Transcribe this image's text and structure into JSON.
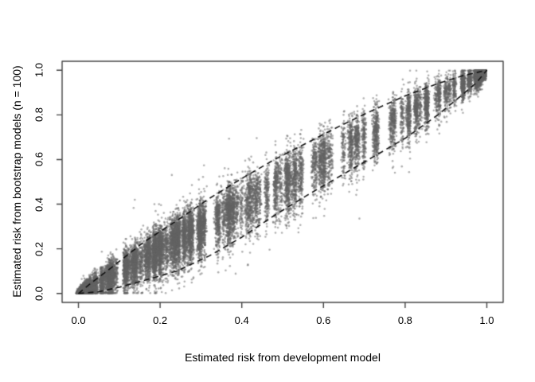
{
  "chart_data": {
    "type": "scatter",
    "title": "",
    "xlabel": "Estimated risk from development model",
    "ylabel": "Estimated risk from bootstrap models (n = 100)",
    "xlim": [
      -0.04,
      1.04
    ],
    "ylim": [
      -0.04,
      1.04
    ],
    "grid": false,
    "legend": null,
    "x_ticks": [
      "0.0",
      "0.2",
      "0.4",
      "0.6",
      "0.8",
      "1.0"
    ],
    "y_ticks": [
      "0.0",
      "0.2",
      "0.4",
      "0.6",
      "0.8",
      "1.0"
    ],
    "x_tick_values": [
      0,
      0.2,
      0.4,
      0.6,
      0.8,
      1.0
    ],
    "y_tick_values": [
      0,
      0.2,
      0.4,
      0.6,
      0.8,
      1.0
    ],
    "frame_color": "#444444",
    "envelope_upper": [
      [
        0,
        0
      ],
      [
        0.03,
        0.045
      ],
      [
        0.08,
        0.115
      ],
      [
        0.16,
        0.23
      ],
      [
        0.24,
        0.325
      ],
      [
        0.32,
        0.425
      ],
      [
        0.4,
        0.515
      ],
      [
        0.48,
        0.6
      ],
      [
        0.56,
        0.675
      ],
      [
        0.64,
        0.75
      ],
      [
        0.72,
        0.82
      ],
      [
        0.8,
        0.885
      ],
      [
        0.88,
        0.94
      ],
      [
        0.94,
        0.975
      ],
      [
        1,
        1
      ]
    ],
    "envelope_lower": [
      [
        0,
        0
      ],
      [
        0.05,
        0.008
      ],
      [
        0.1,
        0.028
      ],
      [
        0.16,
        0.058
      ],
      [
        0.24,
        0.1
      ],
      [
        0.32,
        0.168
      ],
      [
        0.4,
        0.252
      ],
      [
        0.48,
        0.35
      ],
      [
        0.56,
        0.44
      ],
      [
        0.64,
        0.525
      ],
      [
        0.72,
        0.61
      ],
      [
        0.8,
        0.695
      ],
      [
        0.88,
        0.8
      ],
      [
        0.94,
        0.89
      ],
      [
        0.975,
        0.945
      ],
      [
        1,
        1
      ]
    ],
    "line_style": {
      "color": "#111111",
      "width": 1.6,
      "dash": [
        7,
        5
      ]
    },
    "cloud": {
      "seed": 1337,
      "n_stripes": 235,
      "points_min": 60,
      "points_range": 80,
      "low_frac": 0.4,
      "low_scale": 0.38,
      "low_pow": 1.7,
      "mid_frac": 0.5,
      "mid_base": 0.1,
      "mid_scale": 0.88,
      "mid_pow": 0.85,
      "top_base": 0.972,
      "top_scale": 0.022,
      "sd_coef": 0.118,
      "sd_floor": 0.002,
      "down_mult": 1.3,
      "outlier_prob": 0.006,
      "outlier_mult": 2.6,
      "x_jitter": 0.006,
      "point_color": "rgba(100,100,100,0.5)",
      "point_radius": 1.3
    }
  }
}
